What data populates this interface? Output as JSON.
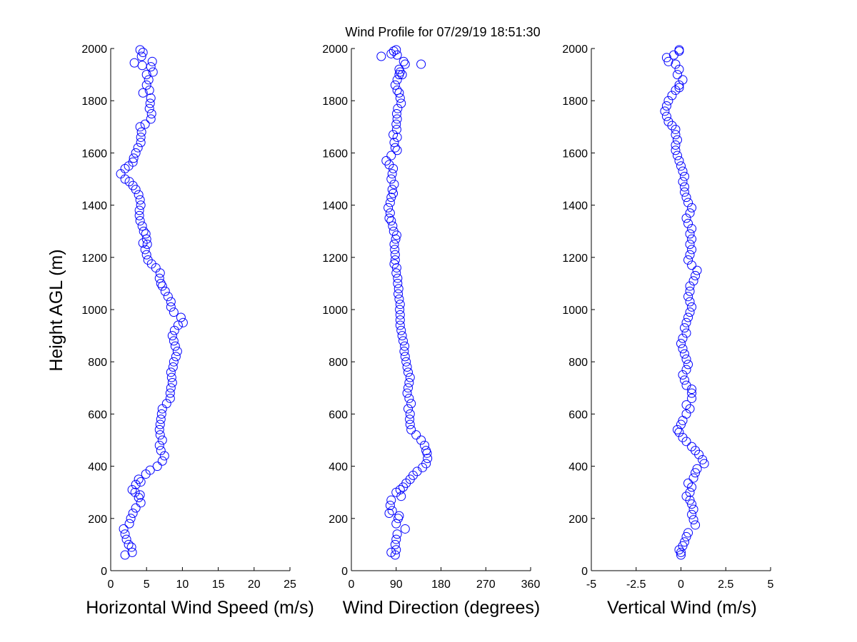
{
  "title": "Wind Profile for  07/29/19 18:51:30",
  "ylabel": "Height AGL (m)",
  "colors": {
    "marker": "#0000ff",
    "axis": "#000000",
    "background": "#ffffff"
  },
  "chart_data": [
    {
      "type": "scatter",
      "xlabel": "Horizontal Wind Speed (m/s)",
      "ylabel": "Height AGL (m)",
      "xlim": [
        0,
        25
      ],
      "ylim": [
        0,
        2000
      ],
      "xticks": [
        "0",
        "5",
        "10",
        "15",
        "20",
        "25"
      ],
      "yticks": [
        "0",
        "200",
        "400",
        "600",
        "800",
        "1000",
        "1200",
        "1400",
        "1600",
        "1800",
        "2000"
      ],
      "grid": false,
      "legend": "none",
      "points": [
        [
          2.0,
          60
        ],
        [
          3.0,
          70
        ],
        [
          2.9,
          90
        ],
        [
          2.5,
          100
        ],
        [
          2.2,
          120
        ],
        [
          2.0,
          140
        ],
        [
          1.8,
          160
        ],
        [
          2.6,
          180
        ],
        [
          2.8,
          200
        ],
        [
          3.1,
          220
        ],
        [
          3.5,
          240
        ],
        [
          4.2,
          260
        ],
        [
          3.9,
          280
        ],
        [
          4.1,
          290
        ],
        [
          3.4,
          300
        ],
        [
          3.0,
          310
        ],
        [
          3.5,
          330
        ],
        [
          4.2,
          340
        ],
        [
          3.9,
          350
        ],
        [
          4.9,
          370
        ],
        [
          5.5,
          385
        ],
        [
          6.5,
          400
        ],
        [
          7.2,
          420
        ],
        [
          7.5,
          440
        ],
        [
          7.0,
          460
        ],
        [
          6.8,
          480
        ],
        [
          7.2,
          500
        ],
        [
          6.9,
          520
        ],
        [
          6.8,
          540
        ],
        [
          6.9,
          560
        ],
        [
          7.0,
          580
        ],
        [
          7.1,
          600
        ],
        [
          7.2,
          620
        ],
        [
          7.8,
          640
        ],
        [
          8.3,
          660
        ],
        [
          8.3,
          680
        ],
        [
          8.4,
          700
        ],
        [
          8.6,
          720
        ],
        [
          8.5,
          740
        ],
        [
          8.4,
          760
        ],
        [
          8.7,
          780
        ],
        [
          8.8,
          800
        ],
        [
          9.1,
          820
        ],
        [
          9.3,
          840
        ],
        [
          9.0,
          860
        ],
        [
          8.8,
          880
        ],
        [
          8.6,
          900
        ],
        [
          8.9,
          920
        ],
        [
          9.4,
          940
        ],
        [
          10.1,
          950
        ],
        [
          9.8,
          970
        ],
        [
          8.8,
          990
        ],
        [
          8.4,
          1010
        ],
        [
          8.4,
          1030
        ],
        [
          8.0,
          1050
        ],
        [
          7.6,
          1070
        ],
        [
          7.2,
          1090
        ],
        [
          7.0,
          1100
        ],
        [
          6.8,
          1120
        ],
        [
          6.9,
          1140
        ],
        [
          6.3,
          1160
        ],
        [
          5.7,
          1175
        ],
        [
          5.2,
          1190
        ],
        [
          5.0,
          1210
        ],
        [
          4.8,
          1230
        ],
        [
          5.1,
          1250
        ],
        [
          4.5,
          1255
        ],
        [
          5.0,
          1270
        ],
        [
          4.9,
          1290
        ],
        [
          4.6,
          1300
        ],
        [
          4.4,
          1320
        ],
        [
          4.1,
          1340
        ],
        [
          4.0,
          1360
        ],
        [
          4.0,
          1380
        ],
        [
          4.2,
          1400
        ],
        [
          4.1,
          1420
        ],
        [
          3.9,
          1440
        ],
        [
          3.5,
          1460
        ],
        [
          3.1,
          1475
        ],
        [
          2.6,
          1490
        ],
        [
          2.0,
          1500
        ],
        [
          1.4,
          1520
        ],
        [
          2.0,
          1540
        ],
        [
          2.5,
          1550
        ],
        [
          3.1,
          1565
        ],
        [
          3.2,
          1580
        ],
        [
          3.5,
          1600
        ],
        [
          3.8,
          1620
        ],
        [
          4.2,
          1640
        ],
        [
          4.2,
          1660
        ],
        [
          4.3,
          1680
        ],
        [
          4.1,
          1700
        ],
        [
          4.8,
          1710
        ],
        [
          5.6,
          1730
        ],
        [
          5.7,
          1750
        ],
        [
          5.4,
          1770
        ],
        [
          5.5,
          1790
        ],
        [
          5.6,
          1810
        ],
        [
          4.5,
          1830
        ],
        [
          5.4,
          1840
        ],
        [
          5.0,
          1860
        ],
        [
          5.3,
          1880
        ],
        [
          5.0,
          1900
        ],
        [
          5.9,
          1910
        ],
        [
          5.6,
          1930
        ],
        [
          4.4,
          1935
        ],
        [
          3.3,
          1945
        ],
        [
          5.8,
          1950
        ],
        [
          4.3,
          1970
        ],
        [
          4.5,
          1985
        ],
        [
          4.1,
          1995
        ]
      ]
    },
    {
      "type": "scatter",
      "xlabel": "Wind Direction (degrees)",
      "xlim": [
        0,
        360
      ],
      "ylim": [
        0,
        2000
      ],
      "xticks": [
        "0",
        "90",
        "180",
        "270",
        "360"
      ],
      "yticks": [
        "0",
        "200",
        "400",
        "600",
        "800",
        "1000",
        "1200",
        "1400",
        "1600",
        "1800",
        "2000"
      ],
      "grid": false,
      "legend": "none",
      "points": [
        [
          88,
          60
        ],
        [
          80,
          70
        ],
        [
          90,
          80
        ],
        [
          88,
          100
        ],
        [
          90,
          120
        ],
        [
          92,
          140
        ],
        [
          108,
          160
        ],
        [
          90,
          180
        ],
        [
          94,
          200
        ],
        [
          96,
          210
        ],
        [
          76,
          220
        ],
        [
          82,
          230
        ],
        [
          78,
          250
        ],
        [
          80,
          270
        ],
        [
          100,
          285
        ],
        [
          90,
          300
        ],
        [
          98,
          310
        ],
        [
          104,
          320
        ],
        [
          110,
          335
        ],
        [
          118,
          350
        ],
        [
          124,
          365
        ],
        [
          132,
          380
        ],
        [
          143,
          395
        ],
        [
          150,
          410
        ],
        [
          153,
          430
        ],
        [
          152,
          450
        ],
        [
          150,
          460
        ],
        [
          147,
          480
        ],
        [
          140,
          500
        ],
        [
          130,
          520
        ],
        [
          120,
          540
        ],
        [
          118,
          560
        ],
        [
          117,
          580
        ],
        [
          118,
          600
        ],
        [
          114,
          620
        ],
        [
          120,
          640
        ],
        [
          116,
          660
        ],
        [
          112,
          680
        ],
        [
          114,
          700
        ],
        [
          116,
          720
        ],
        [
          118,
          740
        ],
        [
          114,
          760
        ],
        [
          112,
          780
        ],
        [
          110,
          800
        ],
        [
          108,
          820
        ],
        [
          106,
          840
        ],
        [
          107,
          860
        ],
        [
          104,
          880
        ],
        [
          102,
          900
        ],
        [
          100,
          920
        ],
        [
          98,
          940
        ],
        [
          98,
          960
        ],
        [
          98,
          980
        ],
        [
          97,
          1000
        ],
        [
          98,
          1020
        ],
        [
          96,
          1040
        ],
        [
          94,
          1060
        ],
        [
          95,
          1080
        ],
        [
          93,
          1100
        ],
        [
          93,
          1120
        ],
        [
          90,
          1140
        ],
        [
          91,
          1160
        ],
        [
          86,
          1175
        ],
        [
          88,
          1190
        ],
        [
          88,
          1210
        ],
        [
          87,
          1230
        ],
        [
          86,
          1250
        ],
        [
          89,
          1270
        ],
        [
          91,
          1285
        ],
        [
          85,
          1300
        ],
        [
          83,
          1320
        ],
        [
          80,
          1340
        ],
        [
          76,
          1350
        ],
        [
          78,
          1370
        ],
        [
          74,
          1390
        ],
        [
          78,
          1410
        ],
        [
          80,
          1430
        ],
        [
          84,
          1445
        ],
        [
          82,
          1460
        ],
        [
          86,
          1480
        ],
        [
          80,
          1500
        ],
        [
          82,
          1520
        ],
        [
          84,
          1540
        ],
        [
          76,
          1555
        ],
        [
          70,
          1570
        ],
        [
          80,
          1590
        ],
        [
          92,
          1610
        ],
        [
          88,
          1620
        ],
        [
          86,
          1640
        ],
        [
          92,
          1660
        ],
        [
          84,
          1670
        ],
        [
          91,
          1690
        ],
        [
          90,
          1710
        ],
        [
          92,
          1730
        ],
        [
          91,
          1750
        ],
        [
          93,
          1770
        ],
        [
          100,
          1790
        ],
        [
          98,
          1810
        ],
        [
          96,
          1830
        ],
        [
          92,
          1840
        ],
        [
          88,
          1860
        ],
        [
          92,
          1880
        ],
        [
          96,
          1900
        ],
        [
          102,
          1900
        ],
        [
          98,
          1910
        ],
        [
          96,
          1920
        ],
        [
          108,
          1940
        ],
        [
          140,
          1940
        ],
        [
          105,
          1950
        ],
        [
          60,
          1970
        ],
        [
          92,
          1975
        ],
        [
          80,
          1980
        ],
        [
          85,
          1990
        ],
        [
          90,
          1995
        ]
      ]
    },
    {
      "type": "scatter",
      "xlabel": "Vertical Wind (m/s)",
      "xlim": [
        -5,
        5
      ],
      "ylim": [
        0,
        2000
      ],
      "xticks": [
        "-5",
        "-2.5",
        "0",
        "2.5",
        "5"
      ],
      "yticks": [
        "0",
        "200",
        "400",
        "600",
        "800",
        "1000",
        "1200",
        "1400",
        "1600",
        "1800",
        "2000"
      ],
      "grid": false,
      "legend": "none",
      "points": [
        [
          0.0,
          60
        ],
        [
          0.0,
          70
        ],
        [
          -0.1,
          80
        ],
        [
          0.1,
          95
        ],
        [
          0.2,
          110
        ],
        [
          0.3,
          130
        ],
        [
          0.4,
          145
        ],
        [
          0.8,
          175
        ],
        [
          0.7,
          195
        ],
        [
          0.6,
          215
        ],
        [
          0.7,
          235
        ],
        [
          0.6,
          255
        ],
        [
          0.5,
          270
        ],
        [
          0.3,
          285
        ],
        [
          0.5,
          300
        ],
        [
          0.6,
          320
        ],
        [
          0.4,
          335
        ],
        [
          0.7,
          355
        ],
        [
          0.8,
          375
        ],
        [
          0.9,
          390
        ],
        [
          1.3,
          410
        ],
        [
          1.2,
          425
        ],
        [
          1.0,
          445
        ],
        [
          0.8,
          460
        ],
        [
          0.6,
          475
        ],
        [
          0.3,
          495
        ],
        [
          0.1,
          510
        ],
        [
          -0.1,
          530
        ],
        [
          -0.2,
          540
        ],
        [
          0.0,
          560
        ],
        [
          0.1,
          575
        ],
        [
          0.3,
          600
        ],
        [
          0.5,
          620
        ],
        [
          0.3,
          635
        ],
        [
          0.6,
          660
        ],
        [
          0.6,
          680
        ],
        [
          0.6,
          695
        ],
        [
          0.3,
          710
        ],
        [
          0.2,
          730
        ],
        [
          0.1,
          750
        ],
        [
          0.3,
          770
        ],
        [
          0.4,
          790
        ],
        [
          0.3,
          810
        ],
        [
          0.2,
          830
        ],
        [
          0.1,
          850
        ],
        [
          0.0,
          870
        ],
        [
          0.1,
          890
        ],
        [
          0.3,
          910
        ],
        [
          0.2,
          930
        ],
        [
          0.3,
          950
        ],
        [
          0.4,
          970
        ],
        [
          0.5,
          990
        ],
        [
          0.6,
          1010
        ],
        [
          0.5,
          1030
        ],
        [
          0.4,
          1050
        ],
        [
          0.5,
          1070
        ],
        [
          0.5,
          1090
        ],
        [
          0.7,
          1110
        ],
        [
          0.8,
          1130
        ],
        [
          0.9,
          1150
        ],
        [
          0.6,
          1170
        ],
        [
          0.4,
          1190
        ],
        [
          0.5,
          1210
        ],
        [
          0.6,
          1230
        ],
        [
          0.5,
          1250
        ],
        [
          0.6,
          1270
        ],
        [
          0.5,
          1290
        ],
        [
          0.6,
          1310
        ],
        [
          0.4,
          1330
        ],
        [
          0.3,
          1350
        ],
        [
          0.5,
          1370
        ],
        [
          0.6,
          1390
        ],
        [
          0.4,
          1410
        ],
        [
          0.3,
          1430
        ],
        [
          0.2,
          1450
        ],
        [
          0.2,
          1470
        ],
        [
          0.1,
          1490
        ],
        [
          0.2,
          1510
        ],
        [
          0.1,
          1530
        ],
        [
          0.0,
          1550
        ],
        [
          -0.1,
          1570
        ],
        [
          -0.2,
          1590
        ],
        [
          -0.3,
          1610
        ],
        [
          -0.3,
          1630
        ],
        [
          -0.2,
          1650
        ],
        [
          -0.3,
          1670
        ],
        [
          -0.3,
          1690
        ],
        [
          -0.5,
          1705
        ],
        [
          -0.7,
          1720
        ],
        [
          -0.8,
          1740
        ],
        [
          -0.9,
          1760
        ],
        [
          -0.8,
          1780
        ],
        [
          -0.7,
          1800
        ],
        [
          -0.5,
          1820
        ],
        [
          -0.3,
          1840
        ],
        [
          -0.1,
          1850
        ],
        [
          -0.1,
          1860
        ],
        [
          0.1,
          1880
        ],
        [
          -0.2,
          1900
        ],
        [
          -0.1,
          1920
        ],
        [
          -0.3,
          1940
        ],
        [
          -0.7,
          1950
        ],
        [
          -0.8,
          1965
        ],
        [
          -0.4,
          1975
        ],
        [
          -0.1,
          1990
        ],
        [
          -0.1,
          1995
        ]
      ]
    }
  ]
}
